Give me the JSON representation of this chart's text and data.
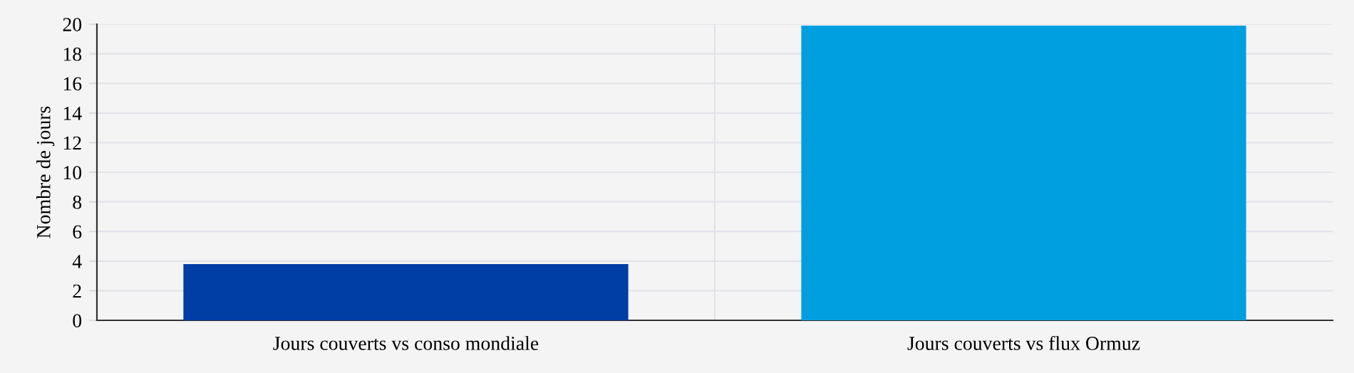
{
  "chart_data": {
    "type": "bar",
    "ylabel": "Nombre de jours",
    "categories": [
      "Jours couverts vs conso mondiale",
      "Jours couverts vs flux Ormuz"
    ],
    "values": [
      3.8,
      19.9
    ],
    "colors": [
      "#003da5",
      "#00a0e0"
    ],
    "ylim": [
      0,
      20
    ],
    "yticks": [
      0,
      2,
      4,
      6,
      8,
      10,
      12,
      14,
      16,
      18,
      20
    ],
    "grid": true
  }
}
